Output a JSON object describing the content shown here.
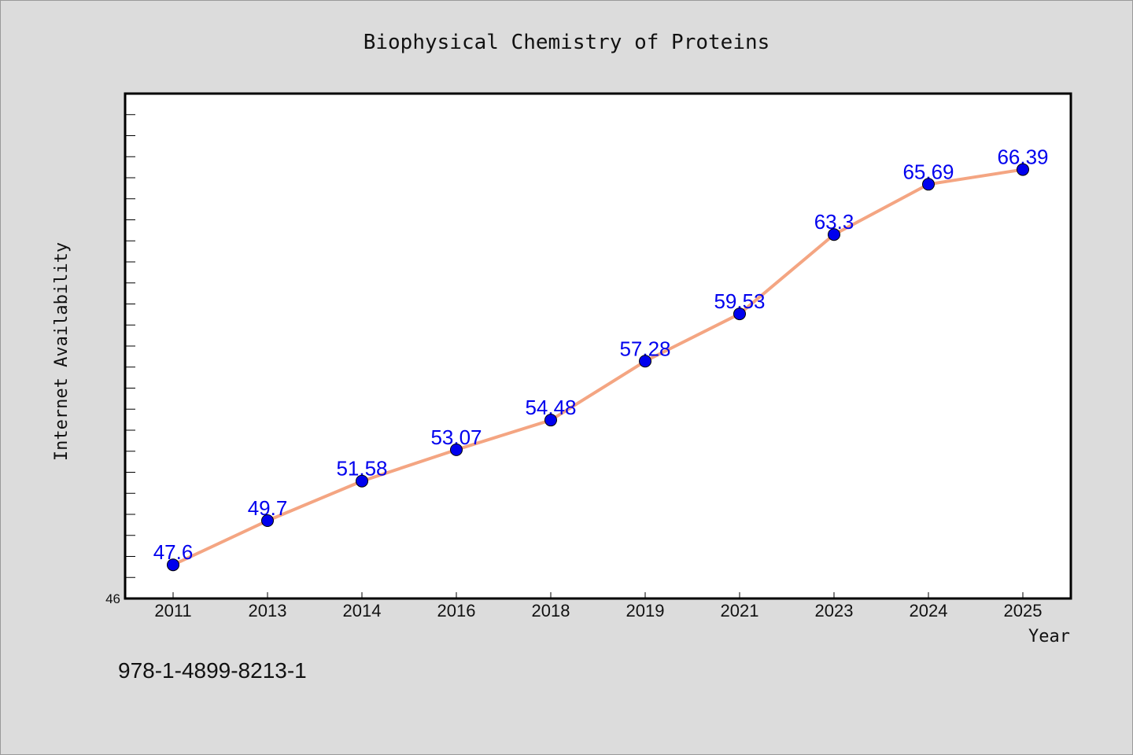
{
  "colors": {
    "background": "#dcdcdc",
    "plot_area": "#ffffff",
    "line": "#f4a582",
    "marker": "#0000ee",
    "data_label": "#0000ee"
  },
  "footer": {
    "isbn": "978-1-4899-8213-1"
  },
  "chart_data": {
    "type": "line",
    "title": "Biophysical Chemistry of Proteins",
    "xlabel": "Year",
    "ylabel": "Internet Availability",
    "categories": [
      "2011",
      "2013",
      "2014",
      "2016",
      "2018",
      "2019",
      "2021",
      "2023",
      "2024",
      "2025"
    ],
    "values": [
      47.6,
      49.7,
      51.58,
      53.07,
      54.48,
      57.28,
      59.53,
      63.3,
      65.69,
      66.39
    ],
    "data_labels": [
      "47.6",
      "49.7",
      "51.58",
      "53.07",
      "54.48",
      "57.28",
      "59.53",
      "63.3",
      "65.69",
      "66.39"
    ],
    "ylim": [
      46,
      70
    ],
    "y_tick_labels": [
      "46"
    ],
    "y_minor_tick_step": 1,
    "grid": false,
    "legend": "none",
    "markers": "circle"
  }
}
